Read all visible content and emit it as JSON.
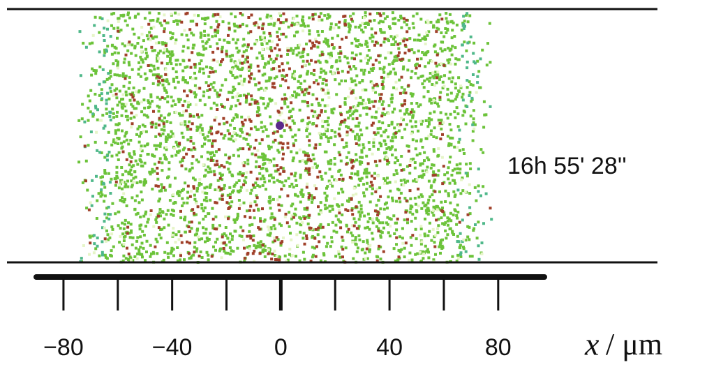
{
  "chart_data": {
    "type": "density",
    "annotation": "16h 55' 28''",
    "xlabel_symbol": "x",
    "xlabel_unit": "/ μm",
    "xlim": [
      -90,
      97
    ],
    "xticks": [
      {
        "value": -80,
        "label": "−80"
      },
      {
        "value": -40,
        "label": "−40"
      },
      0,
      40,
      80
    ],
    "xminor_ticks": [
      -60,
      -20,
      20,
      60
    ]
  }
}
